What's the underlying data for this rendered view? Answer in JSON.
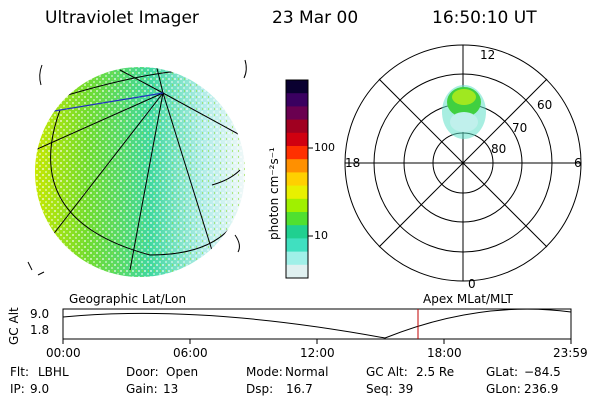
{
  "header": {
    "instrument": "Ultraviolet Imager",
    "date": "23 Mar 00",
    "time": "16:50:10 UT"
  },
  "geo_map": {
    "label": "Geographic Lat/Lon"
  },
  "colorbar": {
    "unit_label": "photon cm⁻²s⁻¹",
    "ticks": [
      "100",
      "10"
    ],
    "colors": [
      "#0a0030",
      "#3a0060",
      "#6a0050",
      "#a00020",
      "#d00010",
      "#ff3000",
      "#ff9000",
      "#ffd000",
      "#e8f000",
      "#a0f000",
      "#50e030",
      "#20d090",
      "#40e0c0",
      "#a0f0e8",
      "#e0f0f0"
    ]
  },
  "polar_plot": {
    "label": "Apex MLat/MLT",
    "mlt_labels": {
      "top": "12",
      "right": "6",
      "bottom": "0",
      "left": "18"
    },
    "lat_labels": [
      "60",
      "70",
      "80"
    ]
  },
  "timeline": {
    "ylabel": "GC Alt",
    "y_ticks": [
      "9.0",
      "1.8"
    ],
    "x_ticks": [
      "00:00",
      "06:00",
      "12:00",
      "18:00",
      "23:59"
    ],
    "current_marker_time": "16:50"
  },
  "info_rows": [
    [
      {
        "k": "Flt:",
        "v": "LBHL"
      },
      {
        "k": "Door:",
        "v": "Open"
      },
      {
        "k": "Mode:",
        "v": "Normal"
      },
      {
        "k": "GC Alt:",
        "v": "2.5 Re"
      },
      {
        "k": "GLat:",
        "v": "−84.5"
      }
    ],
    [
      {
        "k": "IP:",
        "v": "9.0"
      },
      {
        "k": "Gain:",
        "v": "13"
      },
      {
        "k": "Dsp:",
        "v": "16.7"
      },
      {
        "k": "Seq:",
        "v": "39"
      },
      {
        "k": "GLon:",
        "v": "236.9"
      }
    ]
  ]
}
